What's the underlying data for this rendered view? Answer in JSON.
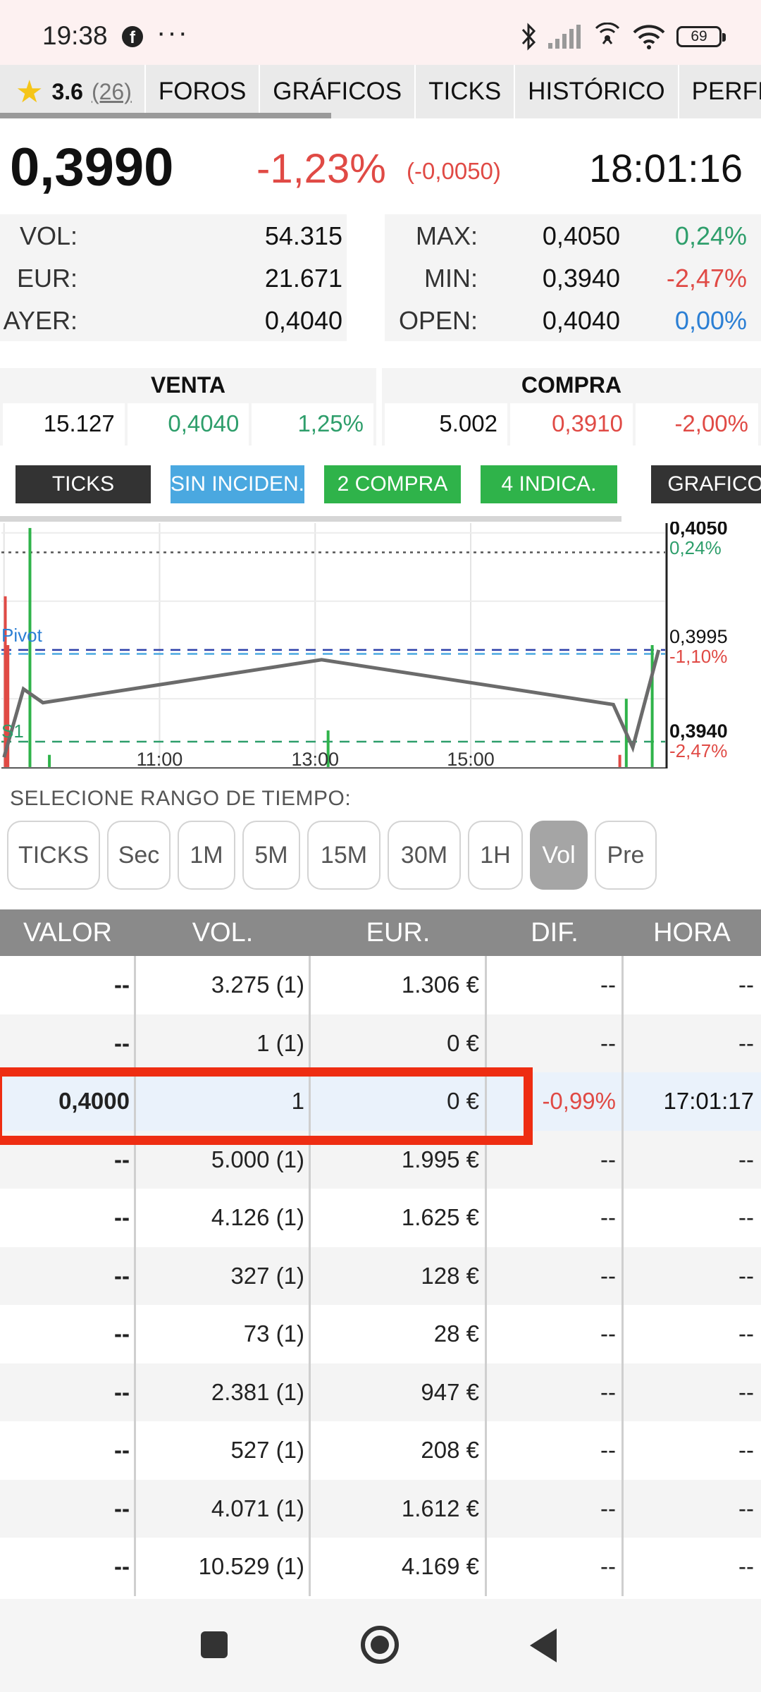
{
  "status_bar": {
    "time": "19:38",
    "dots": "···",
    "battery": "69"
  },
  "top_nav": {
    "rating_score": "3.6",
    "rating_count": "(26)",
    "tabs": [
      "FOROS",
      "GRÁFICOS",
      "TICKS",
      "HISTÓRICO",
      "PERFIL"
    ]
  },
  "quote": {
    "price": "0,3990",
    "change_pct": "-1,23%",
    "change_abs": "(-0,0050)",
    "time": "18:01:16"
  },
  "stats_left": [
    {
      "label": "VOL:",
      "value": "54.315"
    },
    {
      "label": "EUR:",
      "value": "21.671"
    },
    {
      "label": "AYER:",
      "value": "0,4040"
    }
  ],
  "stats_right": [
    {
      "label": "MAX:",
      "value": "0,4050",
      "pct": "0,24%",
      "color": "#2e9e6b"
    },
    {
      "label": "MIN:",
      "value": "0,3940",
      "pct": "-2,47%",
      "color": "#e04a45"
    },
    {
      "label": "OPEN:",
      "value": "0,4040",
      "pct": "0,00%",
      "color": "#2b7fd4"
    }
  ],
  "book": {
    "sell": {
      "title": "VENTA",
      "qty": "15.127",
      "price": "0,4040",
      "pct": "1,25%",
      "color": "#2e9e6b"
    },
    "buy": {
      "title": "COMPRA",
      "qty": "5.002",
      "price": "0,3910",
      "pct": "-2,00%",
      "color": "#e04a45"
    }
  },
  "filters": [
    {
      "label": "TICKS",
      "color": "#333333"
    },
    {
      "label": "SIN INCIDEN.",
      "color": "#4aa8e0"
    },
    {
      "label": "2 COMPRA",
      "color": "#2fb34a"
    },
    {
      "label": "4 INDICA.",
      "color": "#2fb34a"
    },
    {
      "label": "GRAFICO I",
      "color": "#333333"
    }
  ],
  "chart_data": {
    "type": "line",
    "x_ticks": [
      "11:00",
      "13:00",
      "15:00"
    ],
    "right_labels": [
      {
        "value": "0,4050",
        "pct": "0,24%",
        "pct_color": "#2e9e6b"
      },
      {
        "value": "0,3995",
        "pct": "-1,10%",
        "pct_color": "#e04a45"
      },
      {
        "value": "0,3940",
        "pct": "-2,47%",
        "pct_color": "#e04a45"
      }
    ],
    "pivot_label": "Pivot",
    "s1_label": "S1",
    "ylim": [
      0.3935,
      0.406
    ],
    "price_series": [
      {
        "t": "09:00",
        "y": 0.394
      },
      {
        "t": "09:15",
        "y": 0.3975
      },
      {
        "t": "09:30",
        "y": 0.3968
      },
      {
        "t": "13:05",
        "y": 0.399
      },
      {
        "t": "16:50",
        "y": 0.3967
      },
      {
        "t": "17:05",
        "y": 0.3945
      },
      {
        "t": "17:25",
        "y": 0.3995
      }
    ],
    "reference_lines": [
      {
        "name": "max",
        "y": 0.4045,
        "color": "#555555",
        "style": "dotted"
      },
      {
        "name": "pivot",
        "y": 0.3995,
        "color": "#2b3ea8",
        "style": "dashed"
      },
      {
        "name": "pivot2",
        "y": 0.3993,
        "color": "#4aa8e0",
        "style": "dashed"
      },
      {
        "name": "s1",
        "y": 0.3948,
        "color": "#2e9e6b",
        "style": "dashed"
      }
    ],
    "volume_bars": [
      {
        "t": "09:01",
        "h": 0.7,
        "color": "#e04a45"
      },
      {
        "t": "09:03",
        "h": 0.5,
        "color": "#e04a45"
      },
      {
        "t": "09:20",
        "h": 0.98,
        "color": "#2fb34a"
      },
      {
        "t": "09:35",
        "h": 0.05,
        "color": "#2fb34a"
      },
      {
        "t": "13:10",
        "h": 0.15,
        "color": "#2fb34a"
      },
      {
        "t": "16:55",
        "h": 0.05,
        "color": "#e04a45"
      },
      {
        "t": "17:00",
        "h": 0.28,
        "color": "#2fb34a"
      },
      {
        "t": "17:20",
        "h": 0.5,
        "color": "#2fb34a"
      }
    ]
  },
  "range": {
    "label": "SELECIONE RANGO DE TIEMPO:",
    "buttons": [
      "TICKS",
      "Sec",
      "1M",
      "5M",
      "15M",
      "30M",
      "1H",
      "Vol",
      "Pre"
    ],
    "active": "Vol"
  },
  "table": {
    "headers": [
      "VALOR",
      "VOL.",
      "EUR.",
      "DIF.",
      "HORA"
    ],
    "rows": [
      {
        "valor": "--",
        "vol": "3.275 (1)",
        "eur": "1.306 €",
        "dif": "--",
        "hora": "--"
      },
      {
        "valor": "--",
        "vol": "1 (1)",
        "eur": "0 €",
        "dif": "--",
        "hora": "--"
      },
      {
        "valor": "0,4000",
        "vol": "1",
        "eur": "0 €",
        "dif": "-0,99%",
        "hora": "17:01:17",
        "highlight": true
      },
      {
        "valor": "--",
        "vol": "5.000 (1)",
        "eur": "1.995 €",
        "dif": "--",
        "hora": "--"
      },
      {
        "valor": "--",
        "vol": "4.126 (1)",
        "eur": "1.625 €",
        "dif": "--",
        "hora": "--"
      },
      {
        "valor": "--",
        "vol": "327 (1)",
        "eur": "128 €",
        "dif": "--",
        "hora": "--"
      },
      {
        "valor": "--",
        "vol": "73 (1)",
        "eur": "28 €",
        "dif": "--",
        "hora": "--"
      },
      {
        "valor": "--",
        "vol": "2.381 (1)",
        "eur": "947 €",
        "dif": "--",
        "hora": "--"
      },
      {
        "valor": "--",
        "vol": "527 (1)",
        "eur": "208 €",
        "dif": "--",
        "hora": "--"
      },
      {
        "valor": "--",
        "vol": "4.071 (1)",
        "eur": "1.612 €",
        "dif": "--",
        "hora": "--"
      },
      {
        "valor": "--",
        "vol": "10.529 (1)",
        "eur": "4.169 €",
        "dif": "--",
        "hora": "--"
      }
    ]
  },
  "colors": {
    "negative": "#e04a45",
    "positive": "#2e9e6b",
    "neutral": "#2b7fd4",
    "highlight_box": "#ee2d12"
  }
}
